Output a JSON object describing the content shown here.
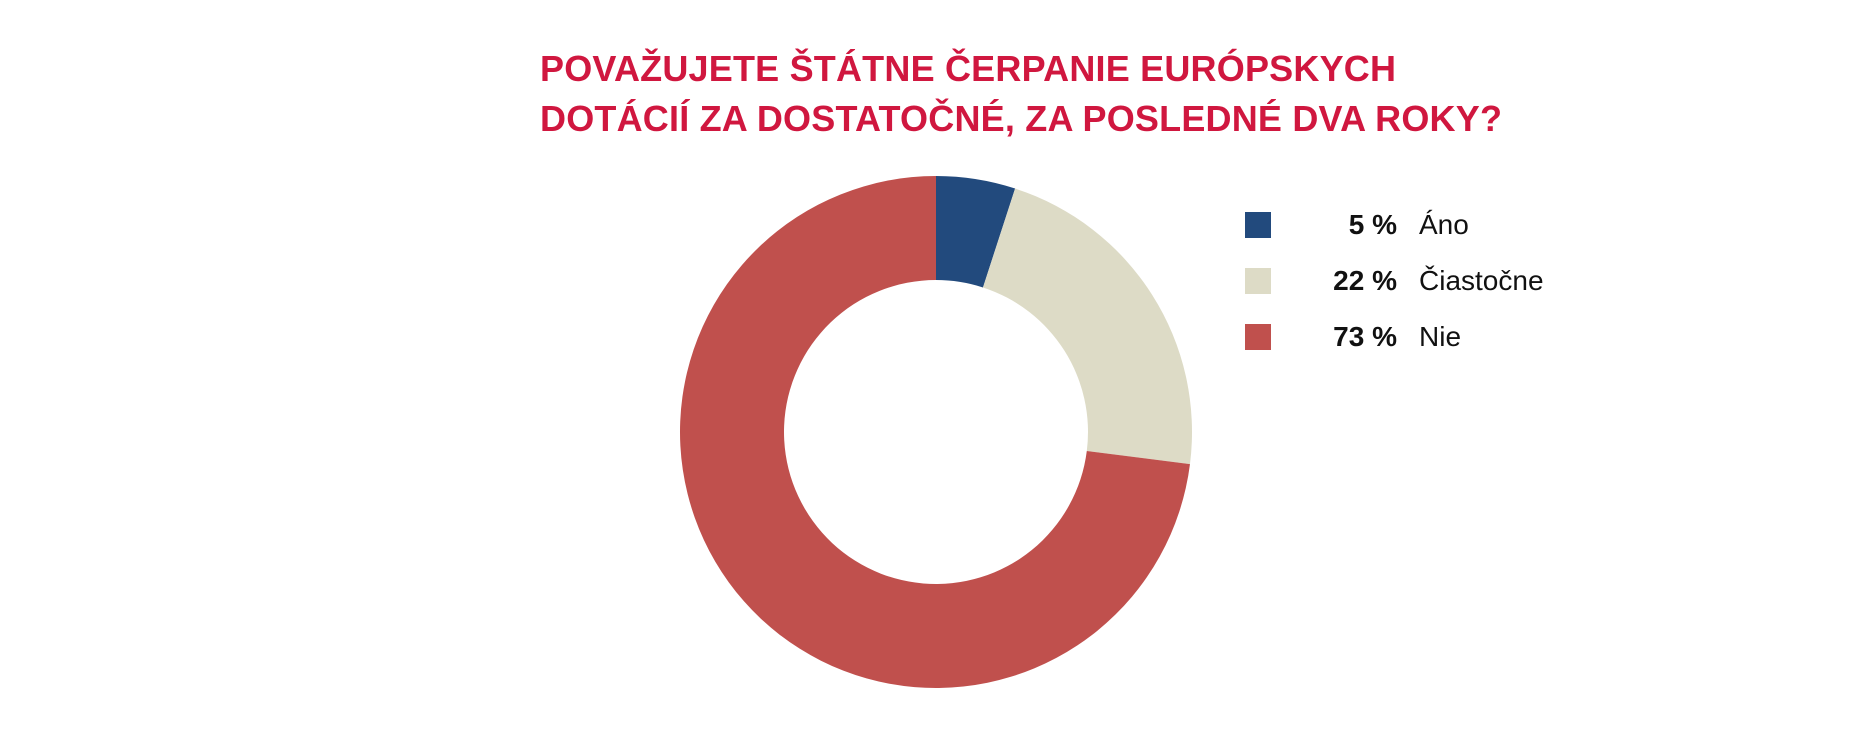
{
  "chart_data": {
    "type": "pie",
    "title_lines": [
      "POVAŽUJETE ŠTÁTNE ČERPANIE EURÓPSKYCH",
      "DOTÁCIÍ ZA DOSTATOČNÉ, ZA POSLEDNÉ DVA ROKY?"
    ],
    "donut": true,
    "legend_position": "right",
    "slices": [
      {
        "label": "Áno",
        "value": 5,
        "value_label": "5 %",
        "color": "#224a7d"
      },
      {
        "label": "Čiastočne",
        "value": 22,
        "value_label": "22 %",
        "color": "#dddbc6"
      },
      {
        "label": "Nie",
        "value": 73,
        "value_label": "73 %",
        "color": "#c0504d"
      }
    ]
  }
}
